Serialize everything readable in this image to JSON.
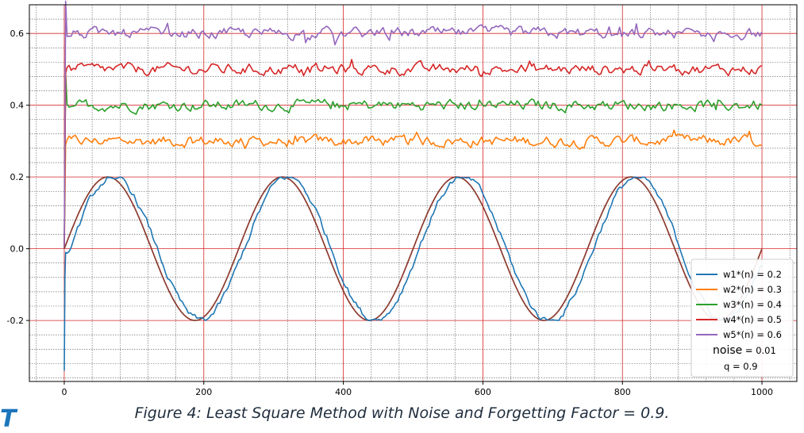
{
  "chart_data": {
    "type": "line",
    "title": "",
    "xlabel": "",
    "ylabel": "",
    "xlim": [
      -50,
      1050
    ],
    "ylim": [
      -0.37,
      0.68
    ],
    "x_ticks": [
      0,
      200,
      400,
      600,
      800,
      1000
    ],
    "y_ticks": [
      -0.2,
      0.0,
      0.2,
      0.4,
      0.6
    ],
    "x_tick_labels": [
      "0",
      "200",
      "400",
      "600",
      "800",
      "1000"
    ],
    "y_tick_labels": [
      "-0.2",
      "0.0",
      "0.2",
      "0.4",
      "0.6"
    ],
    "grid": {
      "major": true,
      "minor": true,
      "major_color": "#d62728",
      "minor_color": "#555555"
    },
    "legend_position": "bottom-right",
    "reference_curve": {
      "color": "#8c3b2f",
      "amplitude": 0.2,
      "period": 250,
      "peaks_at": [
        62,
        312,
        562,
        812
      ],
      "troughs_at": [
        187,
        437,
        687,
        937
      ]
    },
    "series": [
      {
        "name": "w1*(n) = 0.2",
        "color": "#1f77b4",
        "true_value_description": "tracks sinusoid 0.2*sin(2*pi*n/250)",
        "x_range": [
          0,
          1000
        ],
        "start_value": -0.34,
        "peaks_at": [
          70,
          330,
          570,
          820
        ],
        "troughs_at": [
          195,
          445,
          690,
          940
        ],
        "end_value": -0.05
      },
      {
        "name": "w2*(n) = 0.3",
        "color": "#ff7f0e",
        "value": 0.3,
        "x_range": [
          0,
          1000
        ]
      },
      {
        "name": "w3*(n) = 0.4",
        "color": "#2ca02c",
        "value": 0.4,
        "x_range": [
          0,
          1000
        ]
      },
      {
        "name": "w4*(n) = 0.5",
        "color": "#d62728",
        "value": 0.5,
        "x_range": [
          0,
          1000
        ]
      },
      {
        "name": "w5*(n) = 0.6",
        "color": "#9467bd",
        "value": 0.6,
        "x_range": [
          0,
          1000
        ]
      }
    ],
    "annotations": [
      "noise = 0.01",
      "q = 0.9"
    ]
  },
  "legend": {
    "items": [
      "w1*(n) = 0.2",
      "w2*(n) = 0.3",
      "w3*(n) = 0.4",
      "w4*(n) = 0.5",
      "w5*(n) = 0.6"
    ],
    "noise_label": "noise",
    "noise_value": " = 0.01",
    "q_text": "q = 0.9"
  },
  "caption": "Figure 4: Least Square Method with Noise and Forgetting Factor = 0.9.",
  "logo_text": "T"
}
